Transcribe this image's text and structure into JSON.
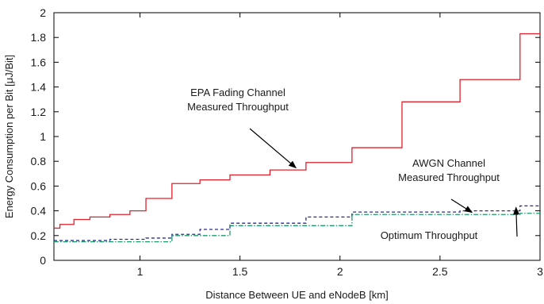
{
  "chart_data": {
    "type": "line",
    "xlabel": "Distance Between UE and eNodeB [km]",
    "ylabel": "Energy Consumption per Bit [μJ/Bit]",
    "xlim": [
      0.57,
      3.0
    ],
    "ylim": [
      0,
      2
    ],
    "x_ticks": [
      1,
      1.5,
      2,
      2.5,
      3
    ],
    "y_ticks": [
      0,
      0.2,
      0.4,
      0.6,
      0.8,
      1,
      1.2,
      1.4,
      1.6,
      1.8,
      2
    ],
    "grid": false,
    "series": [
      {
        "color": "#e0202a",
        "dash": "solid",
        "x": [
          0.57,
          0.6,
          0.67,
          0.75,
          0.85,
          0.95,
          1.03,
          1.16,
          1.3,
          1.45,
          1.65,
          1.83,
          2.06,
          2.31,
          2.6,
          2.9,
          3.0
        ],
        "y": [
          0.26,
          0.29,
          0.33,
          0.35,
          0.37,
          0.4,
          0.5,
          0.62,
          0.65,
          0.69,
          0.73,
          0.79,
          0.91,
          1.28,
          1.46,
          1.83,
          1.83
        ]
      },
      {
        "color": "#2a2a9a",
        "dash": "dashed",
        "x": [
          0.57,
          0.85,
          1.03,
          1.16,
          1.3,
          1.45,
          1.83,
          2.06,
          2.31,
          2.6,
          2.9,
          3.0
        ],
        "y": [
          0.16,
          0.17,
          0.18,
          0.21,
          0.25,
          0.3,
          0.35,
          0.39,
          0.39,
          0.4,
          0.44,
          0.44
        ]
      },
      {
        "color": "#1f9a6e",
        "dash": "dashdot",
        "x": [
          0.57,
          1.16,
          1.45,
          2.06,
          2.9,
          3.0
        ],
        "y": [
          0.15,
          0.2,
          0.28,
          0.37,
          0.38,
          0.38
        ]
      }
    ],
    "annotations": [
      {
        "lines": [
          "EPA Fading Channel",
          "Measured Throughput"
        ],
        "arrow_to": [
          1.78,
          0.76
        ]
      },
      {
        "lines": [
          "AWGN Channel",
          "Measured Throughput"
        ],
        "arrow_to": [
          2.66,
          0.4
        ]
      },
      {
        "lines": [
          "Optimum Throughput"
        ],
        "arrow_to": [
          2.88,
          0.44
        ]
      }
    ]
  }
}
